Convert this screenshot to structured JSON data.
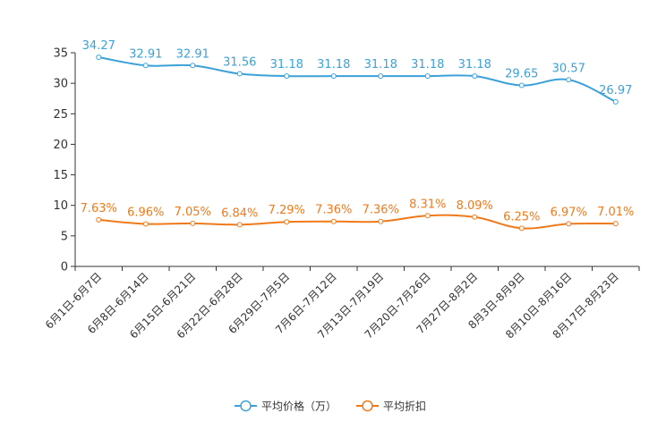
{
  "chart_data": {
    "type": "line",
    "title": "",
    "xlabel": "",
    "ylabel": "",
    "ylim": [
      0,
      35
    ],
    "yticks": [
      0,
      5,
      10,
      15,
      20,
      25,
      30,
      35
    ],
    "ytick_labels": [
      "0",
      "5",
      "10",
      "15",
      "20",
      "25",
      "30",
      "35"
    ],
    "grid": false,
    "legend_position": "bottom-center",
    "categories": [
      "6月1日-6月7日",
      "6月8日-6月14日",
      "6月15日-6月21日",
      "6月22日-6月28日",
      "6月29日-7月5日",
      "7月6日-7月12日",
      "7月13日-7月19日",
      "7月20日-7月26日",
      "7月27日-8月2日",
      "8月3日-8月9日",
      "8月10日-8月16日",
      "8月17日-8月23日"
    ],
    "series": [
      {
        "name": "平均价格（万）",
        "color": "#3ba1d8",
        "values": [
          34.27,
          32.91,
          32.91,
          31.56,
          31.18,
          31.18,
          31.18,
          31.18,
          31.18,
          29.65,
          30.57,
          26.97
        ],
        "labels": [
          "34.27",
          "32.91",
          "32.91",
          "31.56",
          "31.18",
          "31.18",
          "31.18",
          "31.18",
          "31.18",
          "29.65",
          "30.57",
          "26.97"
        ]
      },
      {
        "name": "平均折扣",
        "color": "#f07a1a",
        "values": [
          7.63,
          6.96,
          7.05,
          6.84,
          7.29,
          7.36,
          7.36,
          8.31,
          8.09,
          6.25,
          6.97,
          7.01
        ],
        "labels": [
          "7.63%",
          "6.96%",
          "7.05%",
          "6.84%",
          "7.29%",
          "7.36%",
          "7.36%",
          "8.31%",
          "8.09%",
          "6.25%",
          "6.97%",
          "7.01%"
        ]
      }
    ]
  }
}
